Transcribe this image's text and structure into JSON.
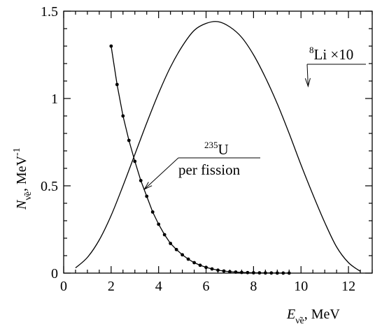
{
  "chart_data": {
    "type": "line",
    "title": "",
    "xlabel": {
      "symbol": "E",
      "subscript": "ν̃e",
      "unit": ", MeV"
    },
    "ylabel": {
      "symbol": "N",
      "subscript": "ν̃e",
      "unit": ",  MeV",
      "unit_sup": "-1"
    },
    "xlim": [
      0,
      13
    ],
    "ylim": [
      0,
      1.5
    ],
    "x_major_ticks": [
      0,
      2,
      4,
      6,
      8,
      10,
      12
    ],
    "x_tick_labels": [
      "0",
      "2",
      "4",
      "6",
      "8",
      "10",
      "12"
    ],
    "y_major_ticks": [
      0,
      0.5,
      1,
      1.5
    ],
    "y_tick_labels": [
      "0",
      "0.5",
      "1",
      "1.5"
    ],
    "x_minor_step": 0.5,
    "y_minor_step": 0.1,
    "grid": false,
    "series": [
      {
        "name": "Li",
        "label_sup": "8",
        "label_suffix": " ×10",
        "style": "line",
        "color": "#000000",
        "x": [
          0.5,
          1,
          1.5,
          2,
          2.5,
          3,
          3.5,
          4,
          4.5,
          5,
          5.5,
          6,
          6.5,
          7,
          7.5,
          8,
          8.5,
          9,
          9.5,
          10,
          10.5,
          11,
          11.5,
          12,
          12.5
        ],
        "y": [
          0.03,
          0.09,
          0.19,
          0.33,
          0.5,
          0.68,
          0.86,
          1.03,
          1.18,
          1.3,
          1.39,
          1.43,
          1.44,
          1.41,
          1.35,
          1.25,
          1.12,
          0.97,
          0.8,
          0.62,
          0.45,
          0.29,
          0.15,
          0.06,
          0.01
        ]
      },
      {
        "name": "U",
        "label_sup": "235",
        "label_line2": "per fission",
        "style": "line+markers",
        "color": "#000000",
        "x": [
          2.0,
          2.25,
          2.5,
          2.75,
          3.0,
          3.25,
          3.5,
          3.75,
          4.0,
          4.25,
          4.5,
          4.75,
          5.0,
          5.25,
          5.5,
          5.75,
          6.0,
          6.25,
          6.5,
          6.75,
          7.0,
          7.25,
          7.5,
          7.75,
          8.0,
          8.25,
          8.5,
          8.75,
          9.0,
          9.25,
          9.5
        ],
        "y": [
          1.3,
          1.08,
          0.9,
          0.76,
          0.64,
          0.53,
          0.44,
          0.35,
          0.28,
          0.22,
          0.17,
          0.135,
          0.105,
          0.08,
          0.06,
          0.045,
          0.033,
          0.024,
          0.017,
          0.012,
          0.008,
          0.006,
          0.004,
          0.003,
          0.002,
          0.0015,
          0.001,
          0.0008,
          0.0005,
          0.0003,
          0.0002
        ]
      }
    ],
    "annotations": [
      {
        "target": "Li",
        "text_sup": "8",
        "text": "Li ×10",
        "arrow_to": [
          10.3,
          1.07
        ]
      },
      {
        "target": "U",
        "text_sup": "235",
        "text": "U",
        "text_line2": "per fission",
        "arrow_to": [
          3.4,
          0.48
        ]
      }
    ]
  }
}
